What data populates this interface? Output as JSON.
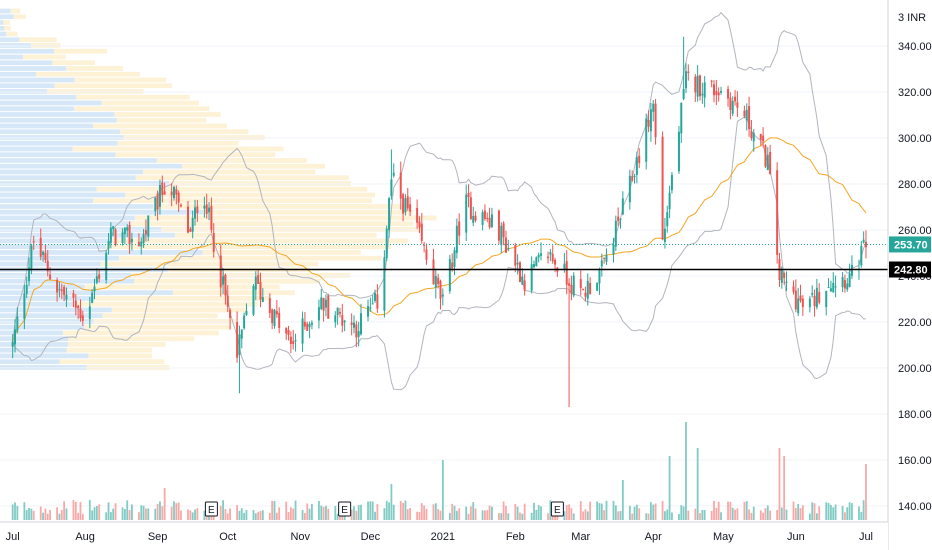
{
  "chart_data": {
    "type": "candlestick",
    "currency_label": "3 INR",
    "y_axis": {
      "ylim": [
        133,
        360
      ],
      "ticks": [
        "340.00",
        "320.00",
        "300.00",
        "280.00",
        "260.00",
        "240.00",
        "220.00",
        "200.00",
        "180.00",
        "160.00",
        "140.00"
      ],
      "tick_values": [
        340,
        320,
        300,
        280,
        260,
        240,
        220,
        200,
        180,
        160,
        140
      ]
    },
    "x_axis": {
      "ticks": [
        "Jul",
        "Aug",
        "Sep",
        "Oct",
        "Nov",
        "Dec",
        "2021",
        "Feb",
        "Mar",
        "Apr",
        "May",
        "Jun",
        "Jul"
      ],
      "tick_dates": [
        "2020-07-01",
        "2020-08-01",
        "2020-09-01",
        "2020-10-01",
        "2020-11-01",
        "2020-12-01",
        "2021-01-01",
        "2021-02-01",
        "2021-03-01",
        "2021-04-01",
        "2021-05-01",
        "2021-06-01",
        "2021-07-01"
      ],
      "range": [
        "2020-06-29",
        "2021-07-07"
      ]
    },
    "last_price": {
      "value": 253.7,
      "label": "253.70",
      "color": "#26a69a"
    },
    "horizontal_line": {
      "value": 242.8,
      "label": "242.80",
      "color": "#000000"
    },
    "price_key_points": [
      {
        "date": "2020-07-01",
        "close": 210
      },
      {
        "date": "2020-07-10",
        "close": 255
      },
      {
        "date": "2020-07-20",
        "close": 235
      },
      {
        "date": "2020-08-01",
        "close": 222
      },
      {
        "date": "2020-08-12",
        "close": 258
      },
      {
        "date": "2020-08-25",
        "close": 255
      },
      {
        "date": "2020-09-05",
        "close": 282
      },
      {
        "date": "2020-09-15",
        "close": 258
      },
      {
        "date": "2020-09-20",
        "close": 280
      },
      {
        "date": "2020-09-30",
        "close": 230
      },
      {
        "date": "2020-10-05",
        "close": 205
      },
      {
        "date": "2020-10-12",
        "close": 238
      },
      {
        "date": "2020-10-28",
        "close": 210
      },
      {
        "date": "2020-11-10",
        "close": 228
      },
      {
        "date": "2020-11-25",
        "close": 218
      },
      {
        "date": "2020-12-05",
        "close": 230
      },
      {
        "date": "2020-12-10",
        "close": 282
      },
      {
        "date": "2020-12-20",
        "close": 262
      },
      {
        "date": "2021-01-01",
        "close": 228
      },
      {
        "date": "2021-01-10",
        "close": 272
      },
      {
        "date": "2021-01-25",
        "close": 260
      },
      {
        "date": "2021-02-05",
        "close": 238
      },
      {
        "date": "2021-02-15",
        "close": 250
      },
      {
        "date": "2021-03-01",
        "close": 232
      },
      {
        "date": "2021-03-10",
        "close": 242
      },
      {
        "date": "2021-03-20",
        "close": 272
      },
      {
        "date": "2021-04-01",
        "close": 315
      },
      {
        "date": "2021-04-05",
        "close": 255
      },
      {
        "date": "2021-04-15",
        "close": 325
      },
      {
        "date": "2021-05-01",
        "close": 320
      },
      {
        "date": "2021-05-10",
        "close": 310
      },
      {
        "date": "2021-05-20",
        "close": 290
      },
      {
        "date": "2021-05-25",
        "close": 240
      },
      {
        "date": "2021-06-05",
        "close": 225
      },
      {
        "date": "2021-06-15",
        "close": 238
      },
      {
        "date": "2021-06-25",
        "close": 240
      },
      {
        "date": "2021-07-01",
        "close": 253.7
      }
    ],
    "events": [
      {
        "date": "2020-09-24",
        "label": "E"
      },
      {
        "date": "2020-11-20",
        "label": "E"
      },
      {
        "date": "2021-02-19",
        "label": "E"
      }
    ],
    "colors": {
      "up": "#26a69a",
      "down": "#ef5350",
      "ma_fast": "#f5a623",
      "bands": "#b2b5be",
      "volume_up": "#80cbc4",
      "volume_down": "#f7a9a8",
      "vp_blue": "#d6e8f7",
      "vp_yellow": "#fdf1d6"
    }
  }
}
